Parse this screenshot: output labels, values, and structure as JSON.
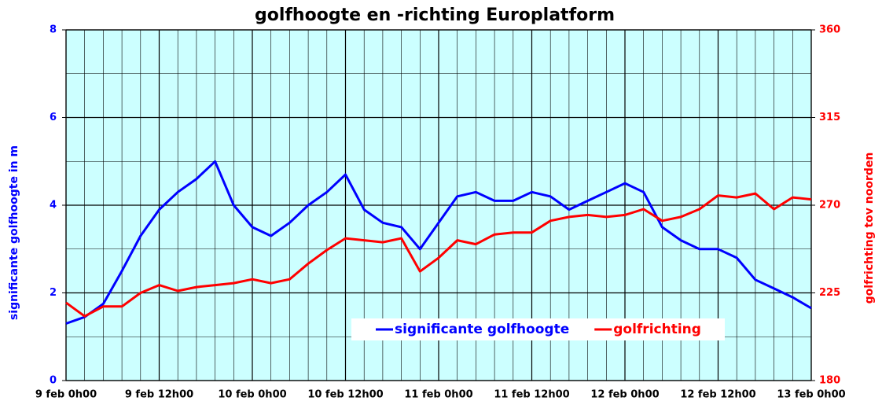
{
  "chart_data": {
    "type": "line",
    "title": "golfhoogte en -richting Europlatform",
    "y_label": "significante golfhoogte in m",
    "y2_label": "golfrichting tov noorden",
    "categories": [
      "9 feb 0h00",
      null,
      null,
      null,
      null,
      "9 feb 12h00",
      null,
      null,
      null,
      null,
      "10 feb 0h00",
      null,
      null,
      null,
      null,
      "10 feb 12h00",
      null,
      null,
      null,
      null,
      "11 feb 0h00",
      null,
      null,
      null,
      null,
      "11 feb 12h00",
      null,
      null,
      null,
      null,
      "12 feb 0h00",
      null,
      null,
      null,
      null,
      "12 feb 12h00",
      null,
      null,
      null,
      null,
      "13 feb 0h00"
    ],
    "series": [
      {
        "name": "significante golfhoogte",
        "color": "#0000ff",
        "axis": "y",
        "values": [
          1.3,
          1.45,
          1.75,
          2.5,
          3.3,
          3.9,
          4.3,
          4.6,
          5.0,
          4.0,
          3.5,
          3.3,
          3.6,
          4.0,
          4.3,
          4.7,
          3.9,
          3.6,
          3.5,
          3.0,
          3.6,
          4.2,
          4.3,
          4.1,
          4.1,
          4.3,
          4.2,
          3.9,
          4.1,
          4.3,
          4.5,
          4.3,
          3.5,
          3.2,
          3.0,
          3.0,
          2.8,
          2.3,
          2.1,
          1.9,
          1.65
        ]
      },
      {
        "name": "golfrichting",
        "color": "#ff0000",
        "axis": "y2",
        "values": [
          220,
          213,
          218,
          218,
          225,
          229,
          226,
          228,
          229,
          230,
          232,
          230,
          232,
          240,
          247,
          253,
          252,
          251,
          253,
          236,
          243,
          252,
          250,
          255,
          256,
          256,
          262,
          264,
          265,
          264,
          265,
          268,
          262,
          264,
          268,
          275,
          274,
          276,
          268,
          274,
          273
        ]
      }
    ],
    "ylim": [
      0,
      8
    ],
    "yticks": [
      0,
      2,
      4,
      6,
      8
    ],
    "y2lim": [
      180,
      360
    ],
    "y2ticks": [
      180,
      225,
      270,
      315,
      360
    ],
    "grid": true,
    "background": "#ccffff"
  }
}
